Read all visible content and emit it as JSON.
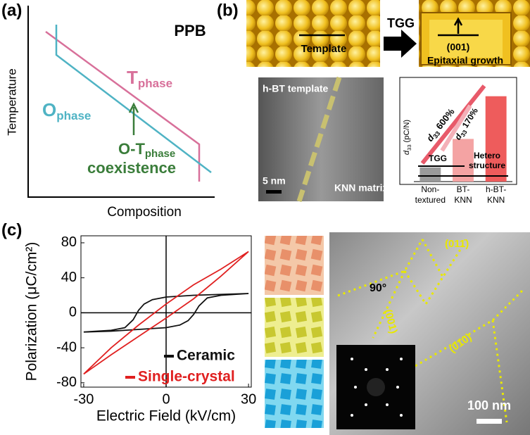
{
  "panel_a": {
    "label": "(a)",
    "title": "PPB",
    "t_phase": {
      "main": "T",
      "sub": "phase"
    },
    "o_phase": {
      "main": "O",
      "sub": "phase"
    },
    "ot_phase": {
      "main": "O-T",
      "sub": "phase"
    },
    "coexistence": "coexistence",
    "y_label": "Temperature",
    "x_label": "Composition"
  },
  "panel_b": {
    "label": "(b)",
    "template": "Template",
    "tgg": "TGG",
    "orientation": "(001)",
    "epitaxial": "Epitaxial growth",
    "tem_title": "h-BT template",
    "scale": "5 nm",
    "matrix": "KNN matrix"
  },
  "panel_c": {
    "label": "(c)",
    "plane_011": "(011̄)",
    "angle": "90°",
    "plane_001": "(001)",
    "plane_010": "(010)",
    "scale": "100 nm"
  },
  "chart_data": [
    {
      "type": "bar",
      "y_label": {
        "main": "d",
        "sub": "33",
        "rest": " (pC/N)"
      },
      "categories": [
        [
          "Non-",
          "textured"
        ],
        [
          "BT-",
          "KNN"
        ],
        [
          "h-BT-",
          "KNN"
        ]
      ],
      "values": [
        0.9,
        2.7,
        5.4
      ],
      "colors": [
        "#9a9a9a",
        "#f4a3a3",
        "#ee5c5c"
      ],
      "ylim": [
        0,
        6.5
      ],
      "annotations": {
        "big": {
          "main": "d",
          "sub": "33",
          "rest": " 600%"
        },
        "small": {
          "main": "d",
          "sub": "33",
          "rest": " 170%"
        },
        "tgg": "TGG",
        "hetero": [
          "Hetero",
          "structure"
        ]
      }
    },
    {
      "type": "line",
      "x_label": "Electric Field (kV/cm)",
      "y_label": "Polarization (μC/cm²)",
      "xlim": [
        -31,
        31
      ],
      "ylim": [
        -85,
        88
      ],
      "xticks": [
        -30,
        0,
        30
      ],
      "yticks": [
        -80,
        -40,
        0,
        40,
        80
      ],
      "series": [
        {
          "name": "Ceramic",
          "color": "#111111",
          "x": [
            30,
            20,
            10,
            0,
            -5,
            -8,
            -10,
            -12,
            -15,
            -20,
            -30,
            -20,
            -10,
            0,
            5,
            8,
            10,
            12,
            15,
            20,
            30
          ],
          "values": [
            22,
            21,
            20,
            18,
            15,
            10,
            3,
            -8,
            -17,
            -20,
            -22,
            -21,
            -19,
            -17,
            -14,
            -9,
            -2,
            8,
            17,
            20,
            22
          ]
        },
        {
          "name": "Single-crystal",
          "color": "#e02020",
          "x": [
            30,
            20,
            10,
            0,
            -10,
            -20,
            -30,
            -20,
            -10,
            0,
            10,
            20,
            30
          ],
          "values": [
            70,
            50,
            32,
            10,
            -14,
            -40,
            -70,
            -48,
            -27,
            -6,
            16,
            42,
            70
          ]
        }
      ]
    }
  ]
}
